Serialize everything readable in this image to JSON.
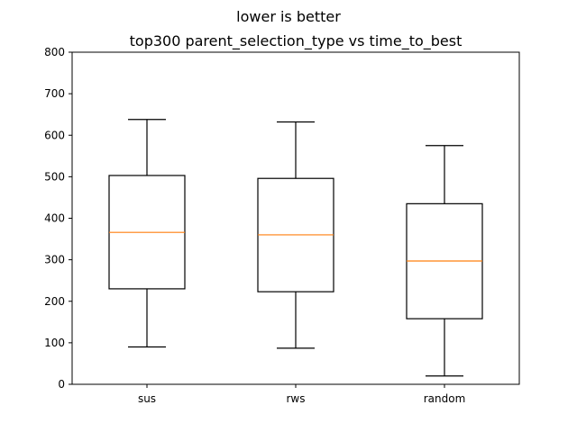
{
  "chart_data": {
    "type": "boxplot",
    "suptitle": "lower is better",
    "title": "top300 parent_selection_type vs time_to_best",
    "xlabel": "",
    "ylabel": "",
    "ylim": [
      0,
      800
    ],
    "yticks": [
      0,
      100,
      200,
      300,
      400,
      500,
      600,
      700,
      800
    ],
    "categories": [
      "sus",
      "rws",
      "random"
    ],
    "boxes": [
      {
        "label": "sus",
        "whisker_low": 90,
        "q1": 230,
        "median": 366,
        "q3": 503,
        "whisker_high": 638
      },
      {
        "label": "rws",
        "whisker_low": 87,
        "q1": 223,
        "median": 360,
        "q3": 496,
        "whisker_high": 632
      },
      {
        "label": "random",
        "whisker_low": 20,
        "q1": 158,
        "median": 297,
        "q3": 435,
        "whisker_high": 575
      }
    ],
    "median_color": "#ff7f0e",
    "box_color": "#000000",
    "grid": false,
    "legend": "none"
  }
}
